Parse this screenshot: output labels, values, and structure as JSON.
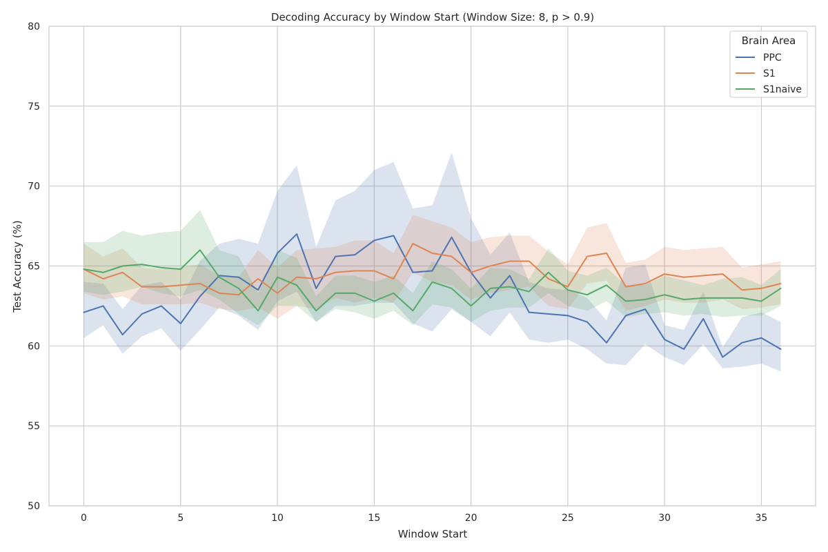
{
  "chart_data": {
    "type": "line",
    "title": "Decoding Accuracy by Window Start (Window Size: 8, p > 0.9)",
    "xlabel": "Window Start",
    "ylabel": "Test Accuracy (%)",
    "xlim": [
      -1.8,
      37.8
    ],
    "ylim": [
      50,
      80
    ],
    "xticks": [
      0,
      5,
      10,
      15,
      20,
      25,
      30,
      35
    ],
    "yticks": [
      50,
      55,
      60,
      65,
      70,
      75,
      80
    ],
    "grid": true,
    "legend": {
      "title": "Brain Area",
      "position": "top-right"
    },
    "x": [
      0,
      1,
      2,
      3,
      4,
      5,
      6,
      7,
      8,
      9,
      10,
      11,
      12,
      13,
      14,
      15,
      16,
      17,
      18,
      19,
      20,
      21,
      22,
      23,
      24,
      25,
      26,
      27,
      28,
      29,
      30,
      31,
      32,
      33,
      34,
      35,
      36
    ],
    "series": [
      {
        "name": "PPC",
        "color": "#4c72b0",
        "values": [
          62.1,
          62.5,
          60.7,
          62.0,
          62.5,
          61.4,
          63.1,
          64.4,
          64.3,
          63.5,
          65.8,
          67.0,
          63.6,
          65.6,
          65.7,
          66.6,
          66.9,
          64.6,
          64.7,
          66.8,
          64.6,
          63.0,
          64.4,
          62.1,
          62.0,
          61.9,
          61.5,
          60.2,
          61.9,
          62.3,
          60.4,
          59.8,
          61.7,
          59.3,
          60.2,
          60.5,
          59.8
        ],
        "lower": [
          60.5,
          61.3,
          59.5,
          60.6,
          61.1,
          59.7,
          61.0,
          62.4,
          61.9,
          61.0,
          62.8,
          63.4,
          61.5,
          62.5,
          62.5,
          62.7,
          62.7,
          61.4,
          60.9,
          62.3,
          61.5,
          60.6,
          62.1,
          60.4,
          60.2,
          60.4,
          59.8,
          58.9,
          58.8,
          60.1,
          59.3,
          58.8,
          60.1,
          58.6,
          58.7,
          58.9,
          58.4
        ],
        "upper": [
          64.0,
          63.9,
          62.3,
          63.8,
          64.0,
          62.9,
          65.3,
          66.4,
          66.7,
          66.4,
          69.7,
          71.3,
          66.2,
          69.1,
          69.7,
          71.0,
          71.5,
          68.6,
          68.8,
          72.1,
          68.0,
          65.7,
          67.1,
          64.0,
          63.6,
          63.5,
          63.0,
          61.6,
          64.9,
          65.1,
          61.3,
          61.0,
          63.4,
          59.9,
          61.8,
          62.1,
          61.5
        ]
      },
      {
        "name": "S1",
        "color": "#dd8452",
        "values": [
          64.8,
          64.2,
          64.6,
          63.7,
          63.7,
          63.8,
          63.9,
          63.3,
          63.2,
          64.2,
          63.3,
          64.3,
          64.2,
          64.6,
          64.7,
          64.7,
          64.2,
          66.4,
          65.8,
          65.6,
          64.6,
          65.0,
          65.3,
          65.3,
          64.2,
          63.7,
          65.6,
          65.8,
          63.7,
          63.9,
          64.5,
          64.3,
          64.4,
          64.5,
          63.5,
          63.6,
          63.9
        ],
        "lower": [
          63.3,
          62.9,
          63.1,
          62.6,
          62.6,
          62.6,
          62.7,
          62.3,
          62.2,
          62.4,
          61.7,
          62.5,
          62.3,
          63.0,
          62.7,
          63.0,
          62.7,
          64.6,
          64.0,
          63.8,
          62.9,
          63.3,
          63.5,
          63.7,
          62.5,
          62.3,
          63.9,
          64.1,
          62.2,
          62.5,
          62.9,
          62.7,
          62.7,
          62.9,
          62.3,
          62.4,
          62.6
        ],
        "upper": [
          66.4,
          65.6,
          66.1,
          64.9,
          64.8,
          64.9,
          65.1,
          64.4,
          64.3,
          66.0,
          64.9,
          66.0,
          66.1,
          66.2,
          66.6,
          66.6,
          65.8,
          68.2,
          67.8,
          67.4,
          66.5,
          66.8,
          66.9,
          66.9,
          65.9,
          65.1,
          67.4,
          67.7,
          65.2,
          65.4,
          66.2,
          66.0,
          66.1,
          66.2,
          64.9,
          65.1,
          65.3
        ]
      },
      {
        "name": "S1naive",
        "color": "#55a868",
        "values": [
          64.8,
          64.6,
          65.0,
          65.1,
          64.9,
          64.8,
          66.0,
          64.3,
          63.6,
          62.2,
          64.3,
          63.8,
          62.2,
          63.3,
          63.3,
          62.8,
          63.3,
          62.2,
          64.0,
          63.6,
          62.5,
          63.6,
          63.7,
          63.4,
          64.6,
          63.5,
          63.2,
          63.8,
          62.8,
          62.9,
          63.2,
          62.9,
          63.0,
          63.0,
          63.0,
          62.8,
          63.6
        ],
        "lower": [
          63.4,
          63.2,
          63.4,
          63.7,
          63.3,
          63.1,
          63.5,
          62.9,
          62.0,
          61.3,
          62.5,
          62.5,
          61.5,
          62.3,
          62.1,
          61.7,
          62.2,
          61.3,
          62.6,
          62.4,
          61.5,
          62.2,
          62.4,
          62.4,
          63.3,
          62.5,
          62.2,
          62.8,
          61.8,
          62.0,
          62.1,
          61.9,
          62.0,
          61.8,
          61.9,
          61.9,
          62.5
        ],
        "upper": [
          66.5,
          66.5,
          67.2,
          66.9,
          67.1,
          67.2,
          68.5,
          66.0,
          65.6,
          63.3,
          66.0,
          65.5,
          63.1,
          64.4,
          64.4,
          64.0,
          64.4,
          63.3,
          65.3,
          64.8,
          63.6,
          64.9,
          64.8,
          64.2,
          66.1,
          64.7,
          64.4,
          64.9,
          63.8,
          63.8,
          64.4,
          64.1,
          63.8,
          64.2,
          64.3,
          63.8,
          64.8
        ]
      }
    ]
  }
}
